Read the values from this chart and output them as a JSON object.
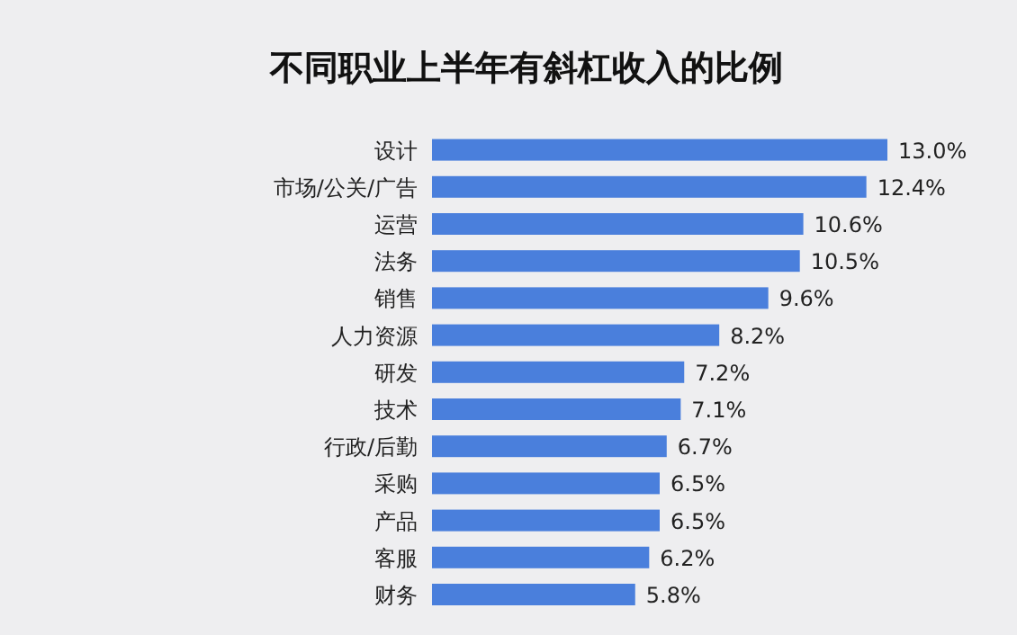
{
  "chart_data": {
    "type": "bar",
    "orientation": "horizontal",
    "title": "不同职业上半年有斜杠收入的比例",
    "categories": [
      "设计",
      "市场/公关/广告",
      "运营",
      "法务",
      "销售",
      "人力资源",
      "研发",
      "技术",
      "行政/后勤",
      "采购",
      "产品",
      "客服",
      "财务"
    ],
    "values": [
      13.0,
      12.4,
      10.6,
      10.5,
      9.6,
      8.2,
      7.2,
      7.1,
      6.7,
      6.5,
      6.5,
      6.2,
      5.8
    ],
    "value_labels": [
      "13.0%",
      "12.4%",
      "10.6%",
      "10.5%",
      "9.6%",
      "8.2%",
      "7.2%",
      "7.1%",
      "6.7%",
      "6.5%",
      "6.5%",
      "6.2%",
      "5.8%"
    ],
    "color": "#4a7fdc"
  }
}
